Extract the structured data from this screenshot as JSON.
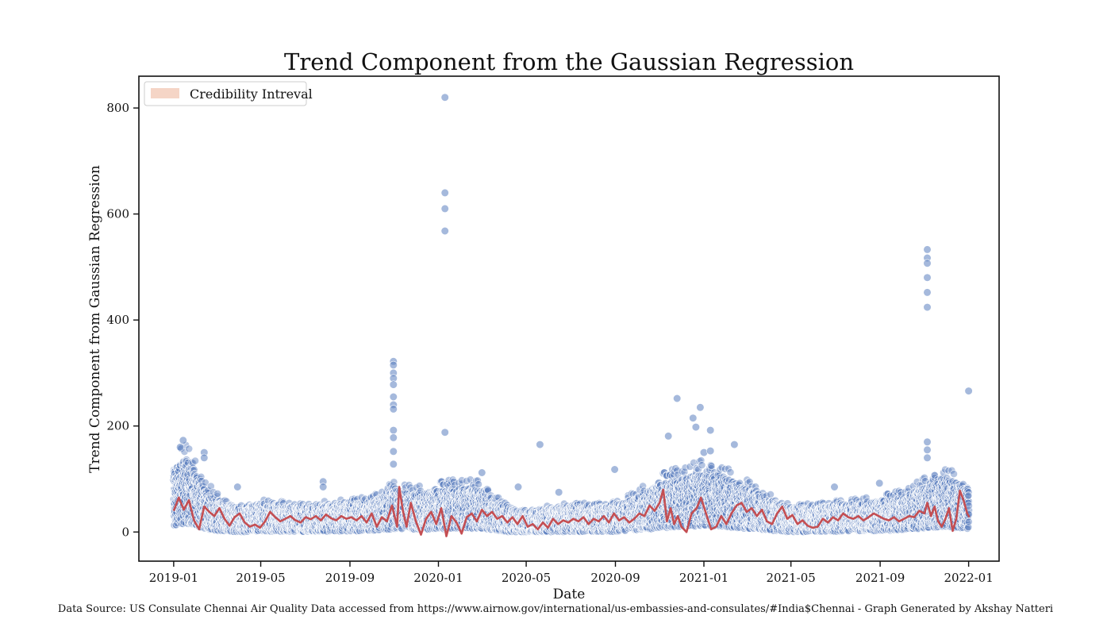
{
  "chart_data": {
    "type": "scatter",
    "title": "Trend Component from the Gaussian Regression",
    "xlabel": "Date",
    "ylabel": "Trend Component from Gaussian Regression",
    "x_range": [
      "2018-11-14",
      "2022-02-12"
    ],
    "ylim": [
      -55,
      860
    ],
    "x_ticks": [
      "2019-01",
      "2019-05",
      "2019-09",
      "2020-01",
      "2020-05",
      "2020-09",
      "2021-01",
      "2021-05",
      "2021-09",
      "2022-01"
    ],
    "y_ticks": [
      0,
      200,
      400,
      600,
      800
    ],
    "grid": false,
    "legend": {
      "position": "upper-left",
      "entries": [
        "Credibility Intreval"
      ]
    },
    "colors": {
      "points": "#5b7fbf",
      "trend": "#c44e52",
      "band": "#f5d5c6"
    },
    "scatter_baseline": [
      [
        "2019-01-01",
        65
      ],
      [
        "2019-01-20",
        78
      ],
      [
        "2019-02-10",
        45
      ],
      [
        "2019-03-05",
        30
      ],
      [
        "2019-04-01",
        22
      ],
      [
        "2019-05-01",
        28
      ],
      [
        "2019-06-01",
        25
      ],
      [
        "2019-07-01",
        24
      ],
      [
        "2019-08-01",
        26
      ],
      [
        "2019-09-01",
        27
      ],
      [
        "2019-10-01",
        30
      ],
      [
        "2019-11-01",
        42
      ],
      [
        "2019-12-01",
        38
      ],
      [
        "2020-01-05",
        42
      ],
      [
        "2020-02-01",
        45
      ],
      [
        "2020-03-01",
        42
      ],
      [
        "2020-04-01",
        25
      ],
      [
        "2020-05-01",
        18
      ],
      [
        "2020-06-01",
        22
      ],
      [
        "2020-07-01",
        24
      ],
      [
        "2020-08-01",
        24
      ],
      [
        "2020-09-01",
        25
      ],
      [
        "2020-10-01",
        35
      ],
      [
        "2020-11-01",
        48
      ],
      [
        "2020-12-01",
        55
      ],
      [
        "2021-01-01",
        60
      ],
      [
        "2021-02-01",
        55
      ],
      [
        "2021-03-01",
        45
      ],
      [
        "2021-04-01",
        32
      ],
      [
        "2021-05-01",
        22
      ],
      [
        "2021-06-01",
        24
      ],
      [
        "2021-07-01",
        26
      ],
      [
        "2021-08-01",
        28
      ],
      [
        "2021-09-01",
        30
      ],
      [
        "2021-10-01",
        35
      ],
      [
        "2021-11-01",
        45
      ],
      [
        "2021-12-01",
        55
      ],
      [
        "2022-01-01",
        45
      ]
    ],
    "outliers": [
      [
        "2020-01-10",
        820
      ],
      [
        "2020-01-10",
        640
      ],
      [
        "2020-01-10",
        610
      ],
      [
        "2020-01-10",
        568
      ],
      [
        "2020-01-10",
        188
      ],
      [
        "2019-10-31",
        322
      ],
      [
        "2019-10-31",
        315
      ],
      [
        "2019-10-31",
        300
      ],
      [
        "2019-10-31",
        290
      ],
      [
        "2019-10-31",
        278
      ],
      [
        "2019-10-31",
        255
      ],
      [
        "2019-10-31",
        240
      ],
      [
        "2019-10-31",
        232
      ],
      [
        "2019-10-31",
        192
      ],
      [
        "2019-10-31",
        178
      ],
      [
        "2019-10-31",
        152
      ],
      [
        "2019-10-31",
        128
      ],
      [
        "2021-11-05",
        533
      ],
      [
        "2021-11-05",
        517
      ],
      [
        "2021-11-05",
        507
      ],
      [
        "2021-11-05",
        480
      ],
      [
        "2021-11-05",
        452
      ],
      [
        "2021-11-05",
        424
      ],
      [
        "2021-11-05",
        170
      ],
      [
        "2021-11-05",
        155
      ],
      [
        "2021-11-05",
        140
      ],
      [
        "2022-01-01",
        266
      ],
      [
        "2020-05-20",
        165
      ],
      [
        "2020-08-31",
        118
      ],
      [
        "2021-02-12",
        165
      ],
      [
        "2020-11-25",
        252
      ],
      [
        "2020-11-13",
        181
      ],
      [
        "2020-12-17",
        215
      ],
      [
        "2020-12-21",
        198
      ],
      [
        "2020-12-27",
        235
      ],
      [
        "2021-01-01",
        150
      ],
      [
        "2021-01-10",
        192
      ],
      [
        "2021-01-10",
        153
      ],
      [
        "2019-01-14",
        173
      ],
      [
        "2019-01-10",
        160
      ],
      [
        "2019-02-12",
        150
      ],
      [
        "2019-02-12",
        140
      ],
      [
        "2019-07-26",
        95
      ],
      [
        "2019-07-26",
        85
      ],
      [
        "2020-03-01",
        112
      ],
      [
        "2021-08-31",
        92
      ],
      [
        "2021-06-30",
        85
      ],
      [
        "2020-04-20",
        85
      ],
      [
        "2020-06-15",
        75
      ],
      [
        "2019-03-30",
        85
      ]
    ],
    "trend": [
      [
        "2019-01-01",
        40
      ],
      [
        "2019-01-08",
        65
      ],
      [
        "2019-01-15",
        42
      ],
      [
        "2019-01-22",
        60
      ],
      [
        "2019-01-29",
        22
      ],
      [
        "2019-02-05",
        5
      ],
      [
        "2019-02-12",
        48
      ],
      [
        "2019-02-19",
        38
      ],
      [
        "2019-02-26",
        30
      ],
      [
        "2019-03-05",
        45
      ],
      [
        "2019-03-12",
        25
      ],
      [
        "2019-03-19",
        12
      ],
      [
        "2019-03-26",
        28
      ],
      [
        "2019-04-02",
        35
      ],
      [
        "2019-04-09",
        18
      ],
      [
        "2019-04-16",
        10
      ],
      [
        "2019-04-23",
        14
      ],
      [
        "2019-04-30",
        8
      ],
      [
        "2019-05-07",
        20
      ],
      [
        "2019-05-14",
        38
      ],
      [
        "2019-05-21",
        28
      ],
      [
        "2019-05-28",
        20
      ],
      [
        "2019-06-04",
        25
      ],
      [
        "2019-06-11",
        30
      ],
      [
        "2019-06-18",
        22
      ],
      [
        "2019-06-25",
        18
      ],
      [
        "2019-07-02",
        28
      ],
      [
        "2019-07-09",
        24
      ],
      [
        "2019-07-16",
        30
      ],
      [
        "2019-07-23",
        22
      ],
      [
        "2019-07-30",
        33
      ],
      [
        "2019-08-06",
        26
      ],
      [
        "2019-08-13",
        22
      ],
      [
        "2019-08-20",
        30
      ],
      [
        "2019-08-27",
        25
      ],
      [
        "2019-09-03",
        28
      ],
      [
        "2019-09-10",
        22
      ],
      [
        "2019-09-17",
        30
      ],
      [
        "2019-09-24",
        18
      ],
      [
        "2019-10-01",
        35
      ],
      [
        "2019-10-08",
        10
      ],
      [
        "2019-10-15",
        28
      ],
      [
        "2019-10-22",
        20
      ],
      [
        "2019-10-29",
        50
      ],
      [
        "2019-11-05",
        10
      ],
      [
        "2019-11-08",
        85
      ],
      [
        "2019-11-13",
        40
      ],
      [
        "2019-11-18",
        10
      ],
      [
        "2019-11-24",
        55
      ],
      [
        "2019-12-01",
        20
      ],
      [
        "2019-12-08",
        -5
      ],
      [
        "2019-12-15",
        25
      ],
      [
        "2019-12-22",
        38
      ],
      [
        "2019-12-29",
        15
      ],
      [
        "2020-01-05",
        45
      ],
      [
        "2020-01-12",
        -8
      ],
      [
        "2020-01-19",
        30
      ],
      [
        "2020-01-26",
        18
      ],
      [
        "2020-02-02",
        -3
      ],
      [
        "2020-02-09",
        28
      ],
      [
        "2020-02-16",
        35
      ],
      [
        "2020-02-23",
        20
      ],
      [
        "2020-03-01",
        42
      ],
      [
        "2020-03-08",
        30
      ],
      [
        "2020-03-15",
        38
      ],
      [
        "2020-03-22",
        25
      ],
      [
        "2020-03-29",
        30
      ],
      [
        "2020-04-05",
        18
      ],
      [
        "2020-04-12",
        28
      ],
      [
        "2020-04-19",
        15
      ],
      [
        "2020-04-26",
        30
      ],
      [
        "2020-05-03",
        10
      ],
      [
        "2020-05-10",
        15
      ],
      [
        "2020-05-17",
        5
      ],
      [
        "2020-05-24",
        18
      ],
      [
        "2020-05-31",
        8
      ],
      [
        "2020-06-07",
        25
      ],
      [
        "2020-06-14",
        15
      ],
      [
        "2020-06-21",
        22
      ],
      [
        "2020-06-28",
        18
      ],
      [
        "2020-07-05",
        25
      ],
      [
        "2020-07-12",
        20
      ],
      [
        "2020-07-19",
        28
      ],
      [
        "2020-07-26",
        15
      ],
      [
        "2020-08-02",
        25
      ],
      [
        "2020-08-09",
        20
      ],
      [
        "2020-08-16",
        30
      ],
      [
        "2020-08-23",
        18
      ],
      [
        "2020-08-30",
        35
      ],
      [
        "2020-09-06",
        22
      ],
      [
        "2020-09-13",
        28
      ],
      [
        "2020-09-20",
        18
      ],
      [
        "2020-09-27",
        25
      ],
      [
        "2020-10-04",
        35
      ],
      [
        "2020-10-11",
        30
      ],
      [
        "2020-10-18",
        50
      ],
      [
        "2020-10-25",
        40
      ],
      [
        "2020-11-01",
        55
      ],
      [
        "2020-11-06",
        80
      ],
      [
        "2020-11-11",
        20
      ],
      [
        "2020-11-16",
        45
      ],
      [
        "2020-11-21",
        15
      ],
      [
        "2020-11-26",
        30
      ],
      [
        "2020-12-01",
        10
      ],
      [
        "2020-12-08",
        0
      ],
      [
        "2020-12-15",
        35
      ],
      [
        "2020-12-22",
        45
      ],
      [
        "2020-12-28",
        65
      ],
      [
        "2021-01-04",
        35
      ],
      [
        "2021-01-11",
        5
      ],
      [
        "2021-01-18",
        10
      ],
      [
        "2021-01-25",
        30
      ],
      [
        "2021-02-01",
        15
      ],
      [
        "2021-02-08",
        35
      ],
      [
        "2021-02-15",
        50
      ],
      [
        "2021-02-22",
        55
      ],
      [
        "2021-03-01",
        38
      ],
      [
        "2021-03-08",
        45
      ],
      [
        "2021-03-15",
        30
      ],
      [
        "2021-03-22",
        42
      ],
      [
        "2021-03-29",
        20
      ],
      [
        "2021-04-05",
        15
      ],
      [
        "2021-04-12",
        35
      ],
      [
        "2021-04-19",
        48
      ],
      [
        "2021-04-26",
        25
      ],
      [
        "2021-05-03",
        32
      ],
      [
        "2021-05-10",
        15
      ],
      [
        "2021-05-17",
        22
      ],
      [
        "2021-05-24",
        12
      ],
      [
        "2021-05-31",
        8
      ],
      [
        "2021-06-07",
        10
      ],
      [
        "2021-06-14",
        25
      ],
      [
        "2021-06-21",
        18
      ],
      [
        "2021-06-28",
        28
      ],
      [
        "2021-07-05",
        22
      ],
      [
        "2021-07-12",
        35
      ],
      [
        "2021-07-19",
        28
      ],
      [
        "2021-07-26",
        25
      ],
      [
        "2021-08-02",
        30
      ],
      [
        "2021-08-09",
        22
      ],
      [
        "2021-08-16",
        28
      ],
      [
        "2021-08-23",
        35
      ],
      [
        "2021-08-30",
        30
      ],
      [
        "2021-09-06",
        25
      ],
      [
        "2021-09-13",
        22
      ],
      [
        "2021-09-20",
        28
      ],
      [
        "2021-09-27",
        20
      ],
      [
        "2021-10-04",
        25
      ],
      [
        "2021-10-11",
        30
      ],
      [
        "2021-10-18",
        28
      ],
      [
        "2021-10-25",
        40
      ],
      [
        "2021-11-01",
        35
      ],
      [
        "2021-11-05",
        55
      ],
      [
        "2021-11-10",
        30
      ],
      [
        "2021-11-15",
        48
      ],
      [
        "2021-11-20",
        20
      ],
      [
        "2021-11-25",
        10
      ],
      [
        "2021-11-30",
        25
      ],
      [
        "2021-12-05",
        45
      ],
      [
        "2021-12-10",
        2
      ],
      [
        "2021-12-15",
        25
      ],
      [
        "2021-12-20",
        78
      ],
      [
        "2021-12-25",
        60
      ],
      [
        "2021-12-30",
        35
      ],
      [
        "2022-01-02",
        28
      ]
    ]
  },
  "footer": "Data Source: US Consulate Chennai Air Quality Data accessed from https://www.airnow.gov/international/us-embassies-and-consulates/#India$Chennai  - Graph Generated by Akshay Natteri"
}
